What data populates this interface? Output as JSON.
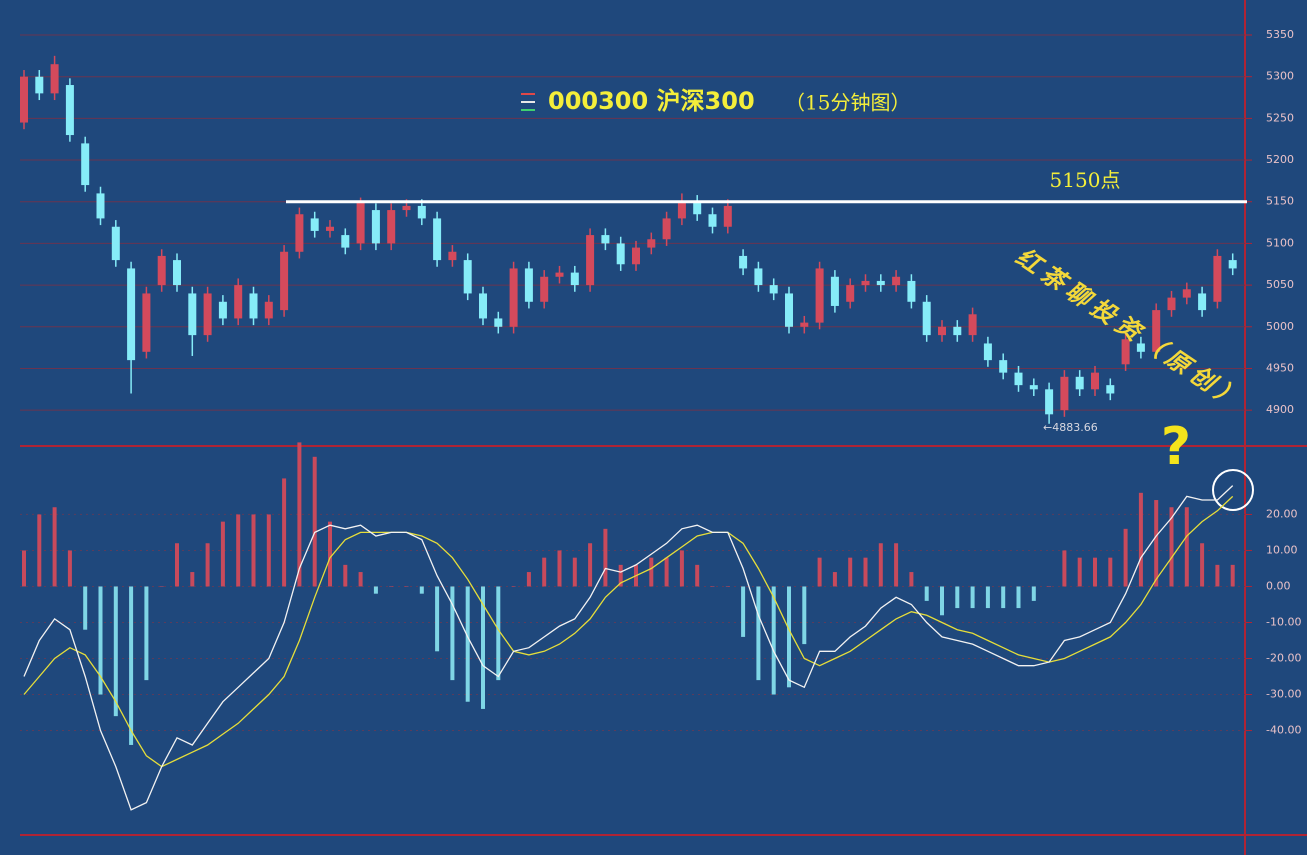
{
  "chart_data": [
    {
      "type": "candlestick",
      "title": "000300 沪深300",
      "subtitle": "（15分钟图）",
      "candles": [
        [
          5245,
          5308,
          5237,
          5300
        ],
        [
          5300,
          5308,
          5272,
          5280
        ],
        [
          5280,
          5325,
          5272,
          5315
        ],
        [
          5290,
          5298,
          5222,
          5230
        ],
        [
          5220,
          5228,
          5162,
          5170
        ],
        [
          5160,
          5168,
          5122,
          5130
        ],
        [
          5120,
          5128,
          5072,
          5080
        ],
        [
          5070,
          5078,
          4920,
          4960
        ],
        [
          4970,
          5048,
          4962,
          5040
        ],
        [
          5050,
          5093,
          5042,
          5085
        ],
        [
          5080,
          5088,
          5042,
          5050
        ],
        [
          5040,
          5048,
          4965,
          4990
        ],
        [
          4990,
          5048,
          4982,
          5040
        ],
        [
          5030,
          5038,
          5002,
          5010
        ],
        [
          5010,
          5058,
          5002,
          5050
        ],
        [
          5040,
          5048,
          5002,
          5010
        ],
        [
          5010,
          5038,
          5002,
          5030
        ],
        [
          5020,
          5098,
          5012,
          5090
        ],
        [
          5090,
          5143,
          5082,
          5135
        ],
        [
          5130,
          5138,
          5107,
          5115
        ],
        [
          5115,
          5128,
          5107,
          5120
        ],
        [
          5110,
          5118,
          5087,
          5095
        ],
        [
          5100,
          5155,
          5092,
          5150
        ],
        [
          5140,
          5148,
          5092,
          5100
        ],
        [
          5100,
          5148,
          5092,
          5140
        ],
        [
          5140,
          5153,
          5132,
          5145
        ],
        [
          5145,
          5153,
          5122,
          5130
        ],
        [
          5130,
          5138,
          5072,
          5080
        ],
        [
          5080,
          5098,
          5072,
          5090
        ],
        [
          5080,
          5088,
          5032,
          5040
        ],
        [
          5040,
          5048,
          5002,
          5010
        ],
        [
          5010,
          5018,
          4992,
          5000
        ],
        [
          5000,
          5078,
          4992,
          5070
        ],
        [
          5070,
          5078,
          5022,
          5030
        ],
        [
          5030,
          5068,
          5022,
          5060
        ],
        [
          5060,
          5073,
          5052,
          5065
        ],
        [
          5065,
          5073,
          5042,
          5050
        ],
        [
          5050,
          5118,
          5042,
          5110
        ],
        [
          5110,
          5118,
          5092,
          5100
        ],
        [
          5100,
          5108,
          5067,
          5075
        ],
        [
          5075,
          5103,
          5067,
          5095
        ],
        [
          5095,
          5113,
          5087,
          5105
        ],
        [
          5105,
          5138,
          5097,
          5130
        ],
        [
          5130,
          5160,
          5122,
          5150
        ],
        [
          5150,
          5158,
          5127,
          5135
        ],
        [
          5135,
          5143,
          5112,
          5120
        ],
        [
          5120,
          5153,
          5112,
          5145
        ],
        [
          5085,
          5093,
          5062,
          5070
        ],
        [
          5070,
          5078,
          5042,
          5050
        ],
        [
          5050,
          5058,
          5032,
          5040
        ],
        [
          5040,
          5048,
          4992,
          5000
        ],
        [
          5000,
          5013,
          4992,
          5005
        ],
        [
          5005,
          5078,
          4997,
          5070
        ],
        [
          5060,
          5068,
          5017,
          5025
        ],
        [
          5030,
          5058,
          5022,
          5050
        ],
        [
          5050,
          5063,
          5042,
          5055
        ],
        [
          5055,
          5063,
          5042,
          5050
        ],
        [
          5050,
          5068,
          5042,
          5060
        ],
        [
          5055,
          5063,
          5022,
          5030
        ],
        [
          5030,
          5038,
          4982,
          4990
        ],
        [
          4990,
          5008,
          4982,
          5000
        ],
        [
          5000,
          5008,
          4982,
          4990
        ],
        [
          4990,
          5023,
          4982,
          5015
        ],
        [
          4980,
          4988,
          4952,
          4960
        ],
        [
          4960,
          4968,
          4937,
          4945
        ],
        [
          4945,
          4953,
          4922,
          4930
        ],
        [
          4930,
          4938,
          4917,
          4925
        ],
        [
          4925,
          4933,
          4883.66,
          4895
        ],
        [
          4900,
          4948,
          4892,
          4940
        ],
        [
          4940,
          4948,
          4917,
          4925
        ],
        [
          4925,
          4953,
          4917,
          4945
        ],
        [
          4930,
          4938,
          4912,
          4920
        ],
        [
          4955,
          4993,
          4947,
          4985
        ],
        [
          4980,
          4988,
          4962,
          4970
        ],
        [
          4970,
          5028,
          4962,
          5020
        ],
        [
          5020,
          5043,
          5012,
          5035
        ],
        [
          5035,
          5053,
          5027,
          5045
        ],
        [
          5040,
          5048,
          5012,
          5020
        ],
        [
          5030,
          5093,
          5022,
          5085
        ],
        [
          5080,
          5088,
          5062,
          5070
        ]
      ],
      "colors": {
        "up": "#d44a5c",
        "down": "#86ecf8"
      },
      "ylim": [
        4857,
        5392
      ],
      "yticks": [
        4900,
        4950,
        5000,
        5050,
        5100,
        5150,
        5200,
        5250,
        5300,
        5350
      ],
      "grid": true,
      "level": {
        "value": 5150,
        "label": "5150点",
        "color": "#ffffff"
      },
      "low_marker": {
        "value": 4883.66,
        "label": "←4883.66"
      },
      "watermark": "红茶聊投资（原创）"
    },
    {
      "type": "macd",
      "dif": {
        "color": "#f2f2f2",
        "values": [
          -25,
          -15,
          -9,
          -12,
          -25,
          -40,
          -50,
          -62,
          -60,
          -50,
          -42,
          -44,
          -38,
          -32,
          -28,
          -24,
          -20,
          -10,
          5,
          15,
          17,
          16,
          17,
          14,
          15,
          15,
          13,
          3,
          -5,
          -14,
          -22,
          -25,
          -18,
          -17,
          -14,
          -11,
          -9,
          -3,
          5,
          4,
          6,
          9,
          12,
          16,
          17,
          15,
          15,
          5,
          -8,
          -18,
          -26,
          -28,
          -18,
          -18,
          -14,
          -11,
          -6,
          -3,
          -5,
          -10,
          -14,
          -15,
          -16,
          -18,
          -20,
          -22,
          -22,
          -21,
          -15,
          -14,
          -12,
          -10,
          -2,
          8,
          14,
          19,
          25,
          24,
          24,
          28
        ]
      },
      "dea": {
        "color": "#e6de3a",
        "values": [
          -30,
          -25,
          -20,
          -17,
          -19,
          -25,
          -32,
          -40,
          -47,
          -50,
          -48,
          -46,
          -44,
          -41,
          -38,
          -34,
          -30,
          -25,
          -15,
          -3,
          8,
          13,
          15,
          15,
          15,
          15,
          14,
          12,
          8,
          2,
          -5,
          -12,
          -18,
          -19,
          -18,
          -16,
          -13,
          -9,
          -3,
          1,
          3,
          5,
          8,
          11,
          14,
          15,
          15,
          12,
          5,
          -3,
          -12,
          -20,
          -22,
          -20,
          -18,
          -15,
          -12,
          -9,
          -7,
          -8,
          -10,
          -12,
          -13,
          -15,
          -17,
          -19,
          -20,
          -21,
          -20,
          -18,
          -16,
          -14,
          -10,
          -5,
          2,
          8,
          14,
          18,
          21,
          25
        ]
      },
      "histogram": {
        "colors": {
          "up": "#c84a5c",
          "down": "#7fd6e6"
        },
        "values": [
          10,
          20,
          22,
          10,
          -12,
          -30,
          -36,
          -44,
          -26,
          0,
          12,
          4,
          12,
          18,
          20,
          20,
          20,
          30,
          40,
          36,
          18,
          6,
          4,
          -2,
          0,
          0,
          -2,
          -18,
          -26,
          -32,
          -34,
          -26,
          0,
          4,
          8,
          10,
          8,
          12,
          16,
          6,
          6,
          8,
          8,
          10,
          6,
          0,
          0,
          -14,
          -26,
          -30,
          -28,
          -16,
          8,
          4,
          8,
          8,
          12,
          12,
          4,
          -4,
          -8,
          -6,
          -6,
          -6,
          -6,
          -6,
          -4,
          0,
          10,
          8,
          8,
          8,
          16,
          26,
          24,
          22,
          22,
          12,
          6,
          6
        ]
      },
      "ylim": [
        -69,
        39
      ],
      "yticks": [
        {
          "value": 20,
          "label": "20.00"
        },
        {
          "value": 10,
          "label": "10.00"
        },
        {
          "value": 0,
          "label": "0.00"
        },
        {
          "value": -10,
          "label": "-10.00"
        },
        {
          "value": -20,
          "label": "-20.00"
        },
        {
          "value": -30,
          "label": "-30.00"
        },
        {
          "value": -40,
          "label": "-40.00"
        }
      ],
      "annotation": "?"
    }
  ]
}
